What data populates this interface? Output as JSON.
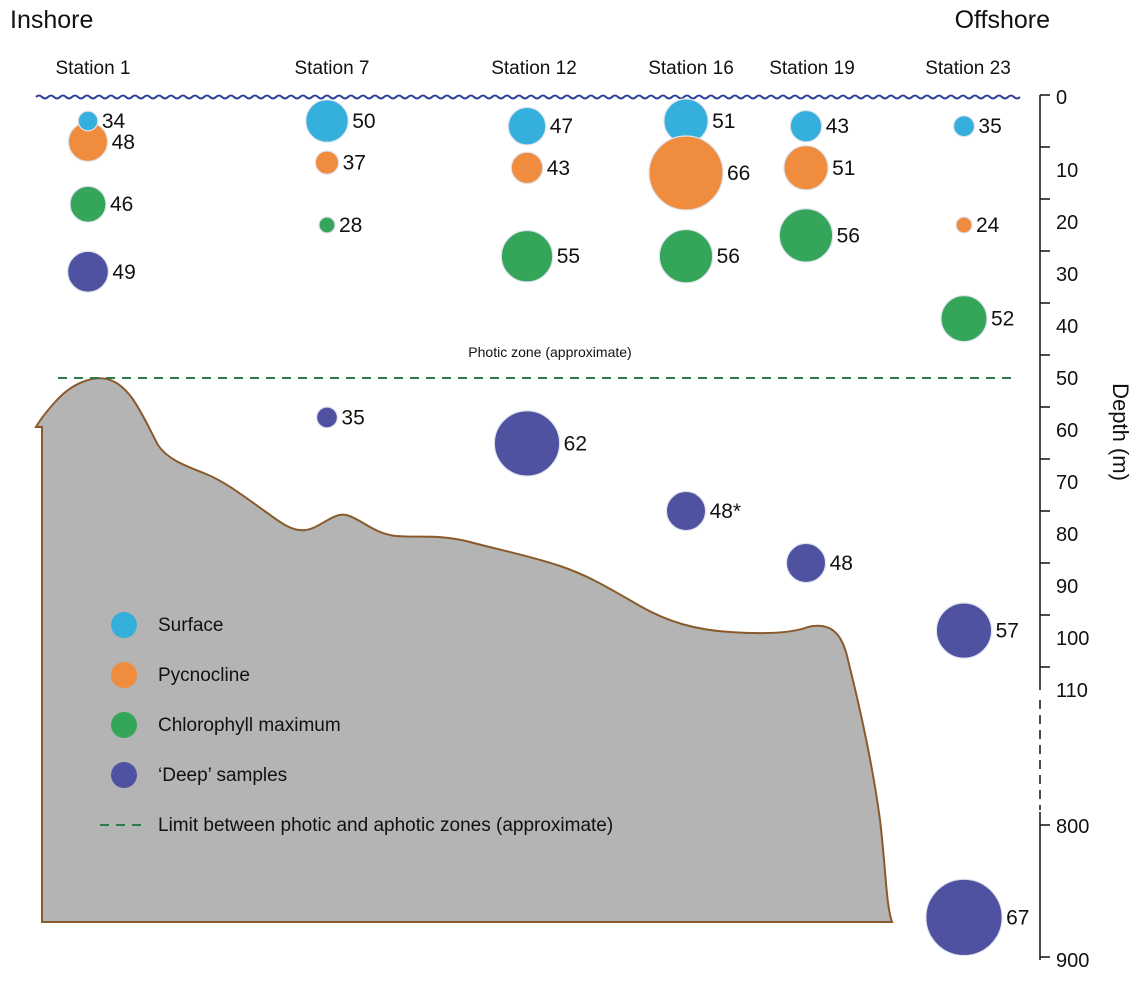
{
  "labels": {
    "inshore": "Inshore",
    "offshore": "Offshore",
    "photic_zone": "Photic zone (approximate)",
    "axis_title": "Depth (m)"
  },
  "stations": [
    "Station 1",
    "Station 7",
    "Station 12",
    "Station 16",
    "Station 19",
    "Station 23"
  ],
  "depth_ticks": [
    "0",
    "10",
    "20",
    "30",
    "40",
    "50",
    "60",
    "70",
    "80",
    "90",
    "100",
    "110",
    "800",
    "900"
  ],
  "legend": {
    "surface": "Surface",
    "pycnocline": "Pycnocline",
    "chlorophyll": "Chlorophyll maximum",
    "deep": "‘Deep’ samples",
    "limit": "Limit between photic and aphotic zones (approximate)"
  },
  "colors": {
    "surface": "#35afdb",
    "pycnocline": "#f08c3e",
    "chlorophyll": "#35a55a",
    "deep": "#4f52a0",
    "seabed": "#b3b4b3",
    "seabed_outline": "#8a5a2c",
    "water_line": "#2d3f9c",
    "photic_limit": "#2f7a4a"
  },
  "chart_data": {
    "type": "bubble",
    "y_label": "Depth (m)",
    "samples": [
      {
        "station": "Station 1",
        "type": "Surface",
        "label": "34",
        "value": 34,
        "depth_m": 5
      },
      {
        "station": "Station 1",
        "type": "Pycnocline",
        "label": "48",
        "value": 48,
        "depth_m": 9
      },
      {
        "station": "Station 1",
        "type": "Chlorophyll maximum",
        "label": "46",
        "value": 46,
        "depth_m": 21
      },
      {
        "station": "Station 1",
        "type": "Deep",
        "label": "49",
        "value": 49,
        "depth_m": 34
      },
      {
        "station": "Station 7",
        "type": "Surface",
        "label": "50",
        "value": 50,
        "depth_m": 5
      },
      {
        "station": "Station 7",
        "type": "Pycnocline",
        "label": "37",
        "value": 37,
        "depth_m": 13
      },
      {
        "station": "Station 7",
        "type": "Chlorophyll maximum",
        "label": "28",
        "value": 28,
        "depth_m": 25
      },
      {
        "station": "Station 7",
        "type": "Deep",
        "label": "35",
        "value": 35,
        "depth_m": 62
      },
      {
        "station": "Station 12",
        "type": "Surface",
        "label": "47",
        "value": 47,
        "depth_m": 6
      },
      {
        "station": "Station 12",
        "type": "Pycnocline",
        "label": "43",
        "value": 43,
        "depth_m": 14
      },
      {
        "station": "Station 12",
        "type": "Chlorophyll maximum",
        "label": "55",
        "value": 55,
        "depth_m": 31
      },
      {
        "station": "Station 12",
        "type": "Deep",
        "label": "62",
        "value": 62,
        "depth_m": 67
      },
      {
        "station": "Station 16",
        "type": "Surface",
        "label": "51",
        "value": 51,
        "depth_m": 5
      },
      {
        "station": "Station 16",
        "type": "Pycnocline",
        "label": "66",
        "value": 66,
        "depth_m": 15
      },
      {
        "station": "Station 16",
        "type": "Chlorophyll maximum",
        "label": "56",
        "value": 56,
        "depth_m": 31
      },
      {
        "station": "Station 16",
        "type": "Deep",
        "label": "48*",
        "value": 48,
        "depth_m": 80
      },
      {
        "station": "Station 19",
        "type": "Surface",
        "label": "43",
        "value": 43,
        "depth_m": 6
      },
      {
        "station": "Station 19",
        "type": "Pycnocline",
        "label": "51",
        "value": 51,
        "depth_m": 14
      },
      {
        "station": "Station 19",
        "type": "Chlorophyll maximum",
        "label": "56",
        "value": 56,
        "depth_m": 27
      },
      {
        "station": "Station 19",
        "type": "Deep",
        "label": "48",
        "value": 48,
        "depth_m": 90
      },
      {
        "station": "Station 23",
        "type": "Surface",
        "label": "35",
        "value": 35,
        "depth_m": 6
      },
      {
        "station": "Station 23",
        "type": "Pycnocline",
        "label": "24",
        "value": 24,
        "depth_m": 25
      },
      {
        "station": "Station 23",
        "type": "Chlorophyll maximum",
        "label": "52",
        "value": 52,
        "depth_m": 43
      },
      {
        "station": "Station 23",
        "type": "Deep",
        "label": "57",
        "value": 57,
        "depth_m": 103
      },
      {
        "station": "Station 23",
        "type": "Deep",
        "label": "67",
        "value": 67,
        "depth_m": 870
      }
    ]
  }
}
